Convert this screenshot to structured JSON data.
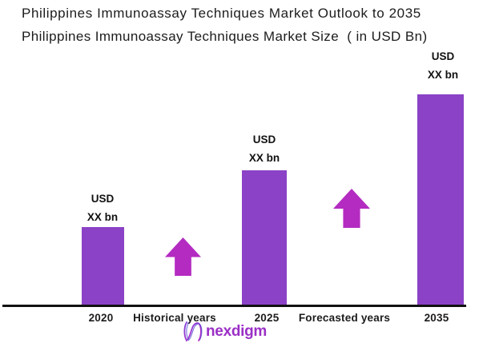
{
  "chart_data": {
    "type": "bar",
    "title": "Philippines Immunoassay Techniques Market Outlook to 2035",
    "subtitle": "Philippines Immunoassay Techniques Market Size  ( in USD Bn)",
    "categories": [
      "2020",
      "2025",
      "2035"
    ],
    "series": [
      {
        "name": "Market Size (USD Bn)",
        "values": [
          "XX",
          "XX",
          "XX"
        ]
      }
    ],
    "value_label_lines": {
      "line1": "USD",
      "line2": "XX bn"
    },
    "relative_heights": [
      0.37,
      0.64,
      1.0
    ],
    "x_annotations": [
      "Historical years",
      "Forecasted years"
    ],
    "xlabel": "",
    "ylabel": "",
    "grid": false,
    "legend": "none"
  },
  "footer": {
    "brand": "nexdigm"
  },
  "colors": {
    "bar": "#8B42C6",
    "arrow": "#B42BC1",
    "axis_line": "#111111",
    "text": "#1C1C1C",
    "brand_text": "#9B2FC6",
    "brand_icon_blue": "#4B3FD0",
    "brand_icon_magenta": "#C030C8"
  }
}
